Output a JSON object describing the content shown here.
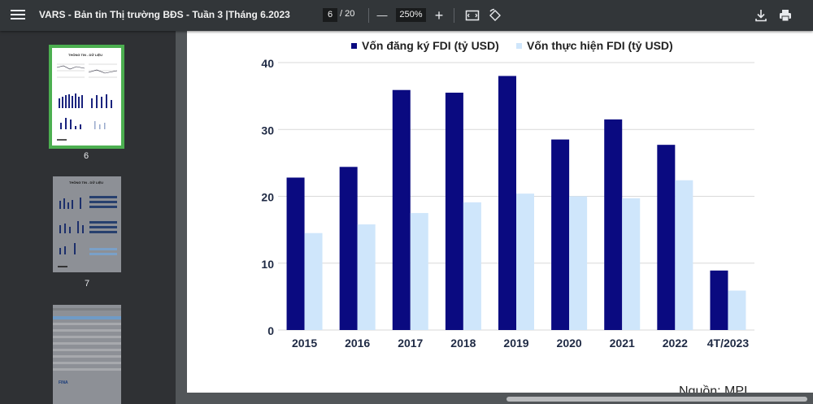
{
  "toolbar": {
    "title": "VARS - Bản tin Thị trường BĐS - Tuần 3 |Tháng 6.2023",
    "current_page": "6",
    "total_pages": "/ 20",
    "zoom": "250%",
    "zoom_out_glyph": "—",
    "zoom_in_glyph": "+"
  },
  "sidebar": {
    "thumbnails": [
      {
        "label": "6",
        "selected": true,
        "title_text": "THÔNG TIN - DỮ LIỆU"
      },
      {
        "label": "7",
        "selected": false,
        "title_text": "THÔNG TIN - DỮ LIỆU"
      },
      {
        "label": "",
        "selected": false,
        "title_text": "FINA"
      }
    ]
  },
  "source_text": "Nguồn: MPI",
  "colors": {
    "registered": "#0a0a80",
    "implemented": "#cfe6fb",
    "selected_border": "#4caf50"
  },
  "chart_data": {
    "type": "bar",
    "categories": [
      "2015",
      "2016",
      "2017",
      "2018",
      "2019",
      "2020",
      "2021",
      "2022",
      "4T/2023"
    ],
    "series": [
      {
        "name": "Vốn đăng ký FDI  (tỷ USD)",
        "values": [
          22.8,
          24.4,
          35.9,
          35.5,
          38.0,
          28.5,
          31.5,
          27.7,
          8.9
        ]
      },
      {
        "name": "Vốn thực hiện FDI (tỷ USD)",
        "values": [
          14.5,
          15.8,
          17.5,
          19.1,
          20.4,
          20.0,
          19.7,
          22.4,
          5.9
        ]
      }
    ],
    "ylim": [
      0,
      40
    ],
    "yticks": [
      "0",
      "10",
      "20",
      "30",
      "40"
    ],
    "grid": true,
    "legend_position": "top"
  }
}
